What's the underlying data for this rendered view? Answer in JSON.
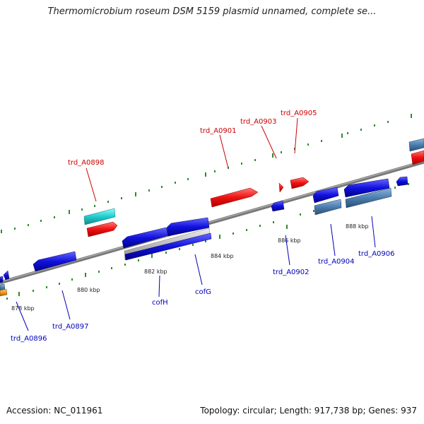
{
  "title": "Thermomicrobium roseum DSM 5159 plasmid unnamed, complete se...",
  "footer": {
    "accession": "Accession: NC_011961",
    "stats": "Topology: circular; Length: 917,738 bp; Genes: 937"
  },
  "colors": {
    "backbone": "#888888",
    "tick": "#2e8b2e",
    "forward_gene": "#ee1111",
    "reverse_gene": "#1111dd",
    "forward_label": "#cc0000",
    "reverse_label": "#0000bb",
    "cyan_feature": "#22cccc",
    "steelblue_feature": "#4a7db0",
    "gray_feature": "#bbbbbb",
    "orange_feature": "#ee9922"
  },
  "scale_labels": [
    "878 kbp",
    "880 kbp",
    "882 kbp",
    "884 kbp",
    "886 kbp",
    "888 kbp"
  ],
  "forward_genes": [
    "trd_A0898",
    "trd_A0901",
    "trd_A0903",
    "trd_A0905"
  ],
  "reverse_genes": [
    "trd_A0896",
    "trd_A0897",
    "cofH",
    "cofG",
    "trd_A0902",
    "trd_A0904",
    "trd_A0906"
  ]
}
